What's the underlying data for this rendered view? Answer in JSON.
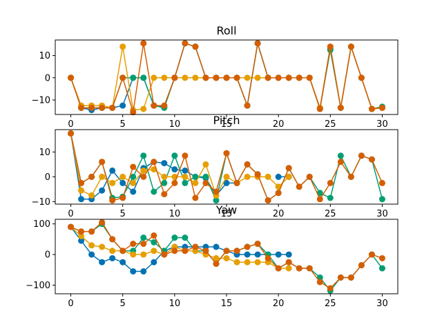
{
  "chart_data": [
    {
      "type": "line",
      "title": "Roll",
      "x": [
        0,
        1,
        2,
        3,
        4,
        5,
        6,
        7,
        8,
        9,
        10,
        11,
        12,
        13,
        14,
        15,
        16,
        17,
        18,
        19,
        20,
        21,
        22,
        23,
        24,
        25,
        26,
        27,
        28,
        29,
        30
      ],
      "xlim": [
        -1.5,
        31.5
      ],
      "ylim": [
        -16.5,
        17
      ],
      "xticks": [
        0,
        5,
        10,
        15,
        20,
        25,
        30
      ],
      "yticks": [
        -10,
        0,
        10
      ],
      "series": [
        {
          "color": "#0072B2",
          "values": [
            0,
            -13.5,
            -14.5,
            -13.5,
            -13.5,
            -12.5,
            0,
            0,
            -12.5,
            -13,
            0,
            15.5,
            14,
            0,
            0,
            0,
            0,
            -12.5,
            15.5,
            0,
            0,
            0,
            0,
            0,
            -14,
            13,
            -13.5,
            14,
            0,
            -14,
            -13.5
          ]
        },
        {
          "color": "#009E73",
          "values": [
            0,
            -13.5,
            -13.5,
            -13.5,
            -13.5,
            0,
            0,
            0,
            -12.5,
            -13.5,
            0,
            15.5,
            14,
            0,
            0,
            0,
            0,
            -12.5,
            15.5,
            0,
            0,
            0,
            0,
            0,
            -13.5,
            12.5,
            -13.5,
            14,
            0,
            -14,
            -13
          ]
        },
        {
          "color": "#E69F00",
          "values": [
            0,
            -12.5,
            -12.5,
            -12.5,
            -13.5,
            14,
            -14.5,
            -14,
            0,
            0,
            0,
            0,
            0,
            0,
            0,
            0,
            0,
            0,
            0,
            0,
            0,
            0,
            0,
            0,
            -13.5,
            14,
            -13.5,
            14,
            0,
            -14,
            -13.5
          ]
        },
        {
          "color": "#D55E00",
          "values": [
            0,
            -13.5,
            -13.5,
            -13.5,
            -13.5,
            0,
            -15.5,
            15.5,
            -12.5,
            -12.5,
            0,
            15.5,
            14,
            0,
            0,
            0,
            0,
            -12.5,
            15.5,
            0,
            0,
            0,
            0,
            0,
            -14,
            14,
            -13.5,
            14,
            0,
            -14,
            -13.5
          ]
        }
      ]
    },
    {
      "type": "line",
      "title": "Pitch",
      "x": [
        0,
        1,
        2,
        3,
        4,
        5,
        6,
        7,
        8,
        9,
        10,
        11,
        12,
        13,
        14,
        15,
        16,
        17,
        18,
        19,
        20,
        21,
        22,
        23,
        24,
        25,
        26,
        27,
        28,
        29,
        30
      ],
      "xlim": [
        -1.5,
        31.5
      ],
      "ylim": [
        -11,
        19
      ],
      "xticks": [
        0,
        5,
        10,
        15,
        20,
        25,
        30
      ],
      "yticks": [
        -10,
        0,
        10
      ],
      "series": [
        {
          "color": "#0072B2",
          "values": [
            17.5,
            -9,
            -9,
            -5.5,
            2.5,
            -2.5,
            -6,
            3.5,
            6,
            5.5,
            3,
            2.5,
            0,
            -0.5,
            -7.5,
            -2.5,
            -2.5,
            null,
            null,
            null,
            0,
            0,
            null,
            null,
            null,
            null,
            null,
            null,
            null,
            null,
            null
          ]
        },
        {
          "color": "#009E73",
          "values": [
            17.5,
            -2.5,
            0,
            6,
            -8.5,
            -8,
            0,
            8.5,
            -6,
            -2.5,
            8.5,
            -2.5,
            0,
            0,
            -9.5,
            9.5,
            -2.5,
            5,
            1,
            -9.5,
            -6.5,
            3.5,
            -4,
            0,
            -6.5,
            -8.5,
            8.5,
            0,
            8.5,
            7,
            -9
          ]
        },
        {
          "color": "#E69F00",
          "values": [
            17.5,
            -5.5,
            -7.5,
            0,
            -2.5,
            0,
            -2.5,
            2.5,
            3,
            0,
            0,
            0,
            -2.5,
            5,
            -7.5,
            0,
            -2.5,
            0,
            0,
            0,
            -4,
            0,
            null,
            null,
            null,
            null,
            null,
            null,
            null,
            null,
            null
          ]
        },
        {
          "color": "#D55E00",
          "values": [
            17.5,
            -2.5,
            0,
            6,
            -9.5,
            -8.5,
            4,
            0,
            6,
            -7,
            -2.5,
            8.5,
            -8.5,
            -2.5,
            -6,
            9.5,
            -2.5,
            5,
            1,
            -9.5,
            -6.5,
            3.5,
            -4,
            0,
            -9,
            -2.5,
            6,
            0,
            8.5,
            7,
            -2.5
          ]
        }
      ]
    },
    {
      "type": "line",
      "title": "Yaw",
      "x": [
        0,
        1,
        2,
        3,
        4,
        5,
        6,
        7,
        8,
        9,
        10,
        11,
        12,
        13,
        14,
        15,
        16,
        17,
        18,
        19,
        20,
        21,
        22,
        23,
        24,
        25,
        26,
        27,
        28,
        29,
        30
      ],
      "xlim": [
        -1.5,
        31.5
      ],
      "ylim": [
        -128,
        115
      ],
      "xticks": [
        0,
        5,
        10,
        15,
        20,
        25,
        30
      ],
      "yticks": [
        -100,
        0,
        100
      ],
      "series": [
        {
          "color": "#0072B2",
          "values": [
            90,
            45,
            0,
            -25,
            -12,
            -25,
            -55,
            -55,
            -25,
            12,
            25,
            25,
            25,
            25,
            25,
            12,
            0,
            0,
            0,
            0,
            0,
            0,
            null,
            null,
            null,
            null,
            null,
            null,
            null,
            null,
            null
          ]
        },
        {
          "color": "#009E73",
          "values": [
            90,
            75,
            75,
            100,
            50,
            12,
            12,
            55,
            40,
            12,
            55,
            55,
            12,
            12,
            -30,
            12,
            12,
            25,
            35,
            0,
            -45,
            -25,
            -45,
            -45,
            -75,
            -118,
            -75,
            -75,
            -35,
            0,
            -45
          ]
        },
        {
          "color": "#E69F00",
          "values": [
            90,
            60,
            30,
            25,
            12,
            12,
            0,
            0,
            12,
            0,
            25,
            12,
            12,
            0,
            -12,
            -12,
            -25,
            -25,
            -25,
            -25,
            -45,
            -45,
            null,
            null,
            null,
            null,
            null,
            null,
            null,
            null,
            null
          ]
        },
        {
          "color": "#D55E00",
          "values": [
            90,
            75,
            75,
            105,
            50,
            12,
            35,
            35,
            62,
            0,
            12,
            12,
            25,
            12,
            -30,
            12,
            12,
            25,
            35,
            -12,
            -45,
            -25,
            -45,
            -45,
            -90,
            -110,
            -75,
            -75,
            -35,
            0,
            -12
          ]
        }
      ]
    }
  ]
}
